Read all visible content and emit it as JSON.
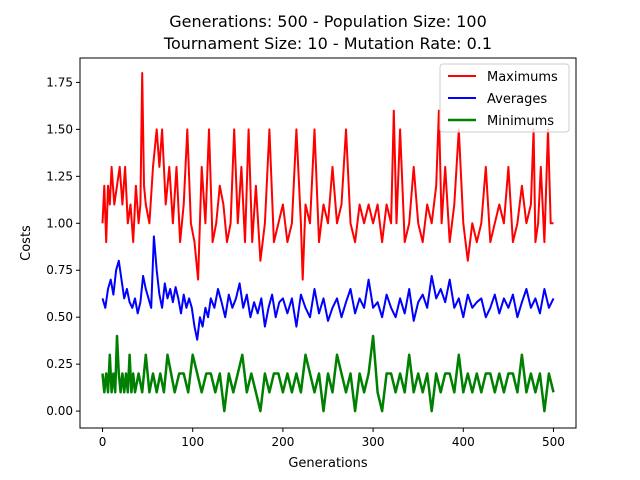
{
  "chart_data": {
    "type": "line",
    "title_line1": "Generations: 500 - Population Size: 100",
    "title_line2": "Tournament Size: 10 - Mutation Rate: 0.1",
    "xlabel": "Generations",
    "ylabel": "Costs",
    "xlim": [
      -25,
      525
    ],
    "ylim": [
      -0.09,
      1.88
    ],
    "xticks": [
      0,
      100,
      200,
      300,
      400,
      500
    ],
    "xtick_labels": [
      "0",
      "100",
      "200",
      "300",
      "400",
      "500"
    ],
    "yticks": [
      0.0,
      0.25,
      0.5,
      0.75,
      1.0,
      1.25,
      1.5,
      1.75
    ],
    "ytick_labels": [
      "0.00",
      "0.25",
      "0.50",
      "0.75",
      "1.00",
      "1.25",
      "1.50",
      "1.75"
    ],
    "legend_position": "top-right",
    "series": [
      {
        "name": "Maximums",
        "color": "#ff0000",
        "x": [
          0,
          2,
          4,
          6,
          8,
          10,
          13,
          16,
          19,
          22,
          25,
          28,
          31,
          34,
          37,
          40,
          42,
          44,
          46,
          48,
          52,
          56,
          60,
          63,
          66,
          70,
          74,
          78,
          82,
          86,
          90,
          94,
          98,
          102,
          106,
          110,
          114,
          118,
          122,
          126,
          130,
          134,
          138,
          142,
          146,
          150,
          154,
          158,
          162,
          166,
          170,
          175,
          180,
          185,
          190,
          195,
          200,
          205,
          210,
          215,
          220,
          222,
          225,
          230,
          235,
          240,
          245,
          250,
          255,
          260,
          265,
          270,
          275,
          280,
          285,
          290,
          295,
          300,
          305,
          310,
          315,
          320,
          323,
          326,
          330,
          335,
          340,
          345,
          350,
          355,
          360,
          365,
          370,
          373,
          376,
          380,
          385,
          390,
          395,
          400,
          405,
          410,
          415,
          420,
          425,
          430,
          435,
          440,
          445,
          450,
          455,
          460,
          465,
          470,
          475,
          478,
          480,
          483,
          486,
          490,
          494,
          497,
          500
        ],
        "y": [
          1.0,
          1.2,
          0.9,
          1.2,
          1.1,
          1.3,
          1.1,
          1.2,
          1.3,
          1.1,
          1.3,
          1.0,
          1.1,
          0.9,
          1.2,
          1.0,
          1.1,
          1.8,
          1.2,
          1.1,
          1.0,
          1.3,
          1.5,
          1.3,
          1.5,
          1.1,
          1.3,
          1.0,
          1.3,
          0.9,
          1.1,
          1.5,
          1.0,
          0.9,
          0.7,
          1.3,
          1.0,
          1.5,
          0.9,
          1.0,
          1.2,
          1.1,
          0.9,
          1.0,
          1.5,
          1.0,
          1.3,
          0.9,
          1.5,
          0.9,
          1.2,
          0.8,
          1.0,
          1.5,
          0.9,
          1.0,
          1.1,
          0.9,
          1.0,
          1.5,
          1.0,
          0.7,
          1.1,
          1.0,
          1.5,
          0.9,
          1.1,
          1.0,
          1.3,
          1.0,
          1.1,
          1.5,
          1.0,
          0.9,
          1.1,
          1.0,
          1.1,
          1.0,
          1.1,
          0.9,
          1.1,
          1.0,
          1.6,
          1.0,
          1.5,
          0.9,
          1.0,
          1.3,
          1.0,
          0.9,
          1.1,
          1.0,
          1.2,
          1.6,
          1.0,
          1.3,
          0.9,
          1.1,
          1.5,
          1.0,
          0.8,
          1.0,
          0.9,
          1.0,
          1.3,
          0.9,
          1.0,
          1.1,
          1.0,
          1.3,
          0.9,
          1.0,
          1.2,
          1.0,
          1.1,
          1.5,
          0.9,
          1.0,
          1.3,
          0.9,
          1.5,
          1.0,
          1.0
        ]
      },
      {
        "name": "Averages",
        "color": "#0000ff",
        "x": [
          0,
          3,
          6,
          9,
          12,
          15,
          18,
          21,
          24,
          27,
          30,
          33,
          36,
          39,
          42,
          45,
          48,
          51,
          54,
          57,
          60,
          63,
          66,
          69,
          72,
          75,
          78,
          81,
          84,
          87,
          90,
          93,
          96,
          99,
          102,
          105,
          108,
          111,
          114,
          117,
          120,
          124,
          128,
          132,
          136,
          140,
          144,
          148,
          152,
          156,
          160,
          164,
          168,
          172,
          176,
          180,
          184,
          188,
          192,
          196,
          200,
          205,
          210,
          215,
          220,
          225,
          230,
          235,
          240,
          245,
          250,
          255,
          260,
          265,
          270,
          275,
          280,
          285,
          290,
          295,
          300,
          305,
          310,
          315,
          320,
          325,
          330,
          335,
          340,
          345,
          350,
          355,
          360,
          365,
          370,
          375,
          380,
          385,
          390,
          395,
          400,
          405,
          410,
          415,
          420,
          425,
          430,
          435,
          440,
          445,
          450,
          455,
          460,
          465,
          470,
          475,
          480,
          485,
          490,
          495,
          500
        ],
        "y": [
          0.6,
          0.55,
          0.65,
          0.7,
          0.62,
          0.75,
          0.8,
          0.7,
          0.6,
          0.65,
          0.58,
          0.55,
          0.6,
          0.52,
          0.58,
          0.72,
          0.65,
          0.6,
          0.55,
          0.93,
          0.75,
          0.62,
          0.55,
          0.68,
          0.6,
          0.65,
          0.58,
          0.66,
          0.6,
          0.52,
          0.62,
          0.55,
          0.6,
          0.55,
          0.45,
          0.38,
          0.5,
          0.45,
          0.55,
          0.5,
          0.6,
          0.55,
          0.65,
          0.58,
          0.5,
          0.62,
          0.55,
          0.6,
          0.68,
          0.55,
          0.62,
          0.5,
          0.58,
          0.52,
          0.6,
          0.45,
          0.55,
          0.62,
          0.5,
          0.58,
          0.6,
          0.52,
          0.6,
          0.45,
          0.62,
          0.55,
          0.5,
          0.65,
          0.52,
          0.6,
          0.48,
          0.55,
          0.6,
          0.5,
          0.58,
          0.65,
          0.52,
          0.6,
          0.55,
          0.7,
          0.55,
          0.58,
          0.5,
          0.62,
          0.55,
          0.5,
          0.6,
          0.52,
          0.65,
          0.48,
          0.58,
          0.62,
          0.55,
          0.72,
          0.6,
          0.65,
          0.58,
          0.7,
          0.55,
          0.6,
          0.5,
          0.62,
          0.55,
          0.58,
          0.6,
          0.5,
          0.55,
          0.62,
          0.52,
          0.6,
          0.55,
          0.62,
          0.5,
          0.58,
          0.65,
          0.55,
          0.6,
          0.52,
          0.65,
          0.55,
          0.6
        ]
      },
      {
        "name": "Minimums",
        "color": "#008000",
        "x": [
          0,
          2,
          4,
          6,
          8,
          10,
          12,
          14,
          16,
          18,
          20,
          22,
          24,
          26,
          28,
          30,
          32,
          34,
          36,
          40,
          44,
          48,
          52,
          56,
          60,
          64,
          68,
          72,
          76,
          80,
          85,
          90,
          95,
          100,
          105,
          110,
          115,
          120,
          125,
          130,
          135,
          140,
          145,
          150,
          155,
          160,
          165,
          170,
          175,
          180,
          185,
          190,
          195,
          200,
          205,
          210,
          215,
          220,
          225,
          230,
          235,
          240,
          245,
          250,
          255,
          260,
          265,
          270,
          275,
          280,
          285,
          290,
          295,
          300,
          305,
          310,
          315,
          320,
          325,
          330,
          335,
          340,
          345,
          350,
          355,
          360,
          365,
          370,
          375,
          380,
          385,
          390,
          395,
          400,
          405,
          410,
          415,
          420,
          425,
          430,
          435,
          440,
          445,
          450,
          455,
          460,
          465,
          470,
          475,
          480,
          485,
          490,
          495,
          500
        ],
        "y": [
          0.2,
          0.1,
          0.2,
          0.1,
          0.3,
          0.1,
          0.2,
          0.1,
          0.4,
          0.2,
          0.1,
          0.2,
          0.1,
          0.2,
          0.1,
          0.3,
          0.1,
          0.2,
          0.1,
          0.2,
          0.1,
          0.3,
          0.1,
          0.2,
          0.1,
          0.2,
          0.1,
          0.3,
          0.2,
          0.1,
          0.2,
          0.2,
          0.1,
          0.3,
          0.2,
          0.1,
          0.2,
          0.2,
          0.1,
          0.2,
          0.0,
          0.2,
          0.1,
          0.2,
          0.3,
          0.1,
          0.2,
          0.1,
          0.0,
          0.2,
          0.1,
          0.2,
          0.2,
          0.1,
          0.2,
          0.1,
          0.2,
          0.1,
          0.3,
          0.2,
          0.1,
          0.2,
          0.0,
          0.2,
          0.1,
          0.3,
          0.2,
          0.1,
          0.2,
          0.0,
          0.2,
          0.1,
          0.2,
          0.4,
          0.1,
          0.0,
          0.2,
          0.2,
          0.1,
          0.2,
          0.1,
          0.3,
          0.1,
          0.2,
          0.1,
          0.2,
          0.0,
          0.2,
          0.1,
          0.2,
          0.2,
          0.1,
          0.3,
          0.1,
          0.2,
          0.1,
          0.2,
          0.1,
          0.2,
          0.2,
          0.1,
          0.2,
          0.1,
          0.2,
          0.2,
          0.1,
          0.3,
          0.1,
          0.2,
          0.1,
          0.2,
          0.0,
          0.2,
          0.1
        ]
      }
    ]
  }
}
